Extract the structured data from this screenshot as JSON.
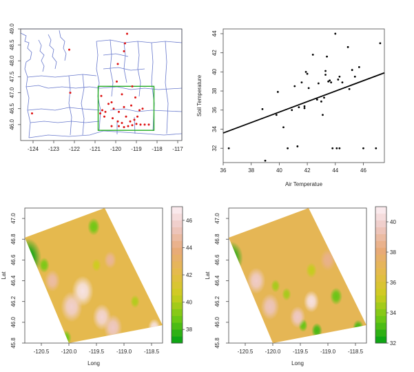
{
  "chart_data": [
    {
      "type": "map",
      "title": "",
      "xlabel": "",
      "ylabel": "",
      "xlim": [
        -124.6,
        -116.8
      ],
      "ylim": [
        45.5,
        49.0
      ],
      "x_ticks": [
        "-124",
        "-123",
        "-122",
        "-121",
        "-120",
        "-119",
        "-118",
        "-117"
      ],
      "y_ticks": [
        "46.0",
        "46.5",
        "47.0",
        "47.5",
        "48.0",
        "48.5",
        "49.0"
      ],
      "box": {
        "color": "#22aa22",
        "lon": [
          -120.85,
          -118.15
        ],
        "lat": [
          45.82,
          47.2
        ]
      },
      "point_color": "#dd1111",
      "points": [
        [
          -119.45,
          48.85
        ],
        [
          -119.55,
          48.55
        ],
        [
          -119.6,
          48.3
        ],
        [
          -122.25,
          48.35
        ],
        [
          -119.9,
          47.9
        ],
        [
          -119.95,
          47.35
        ],
        [
          -119.2,
          47.2
        ],
        [
          -122.2,
          47.0
        ],
        [
          -120.7,
          46.9
        ],
        [
          -120.35,
          46.65
        ],
        [
          -120.2,
          46.7
        ],
        [
          -120.5,
          46.4
        ],
        [
          -120.65,
          46.45
        ],
        [
          -120.75,
          46.35
        ],
        [
          -120.55,
          46.25
        ],
        [
          -120.1,
          46.5
        ],
        [
          -119.85,
          46.4
        ],
        [
          -119.6,
          46.55
        ],
        [
          -119.5,
          46.25
        ],
        [
          -119.25,
          46.6
        ],
        [
          -118.85,
          46.45
        ],
        [
          -118.7,
          46.5
        ],
        [
          -119.05,
          46.85
        ],
        [
          -119.7,
          46.95
        ],
        [
          -118.95,
          46.25
        ],
        [
          -119.1,
          46.15
        ],
        [
          -119.3,
          46.1
        ],
        [
          -119.7,
          46.05
        ],
        [
          -119.85,
          45.95
        ],
        [
          -119.6,
          45.92
        ],
        [
          -119.4,
          45.95
        ],
        [
          -119.2,
          45.98
        ],
        [
          -119.0,
          46.02
        ],
        [
          -118.8,
          46.0
        ],
        [
          -118.6,
          46.0
        ],
        [
          -118.4,
          46.0
        ],
        [
          -120.2,
          45.95
        ],
        [
          -124.05,
          46.35
        ],
        [
          -120.15,
          46.2
        ],
        [
          -119.9,
          46.1
        ]
      ]
    },
    {
      "type": "scatter",
      "title": "",
      "xlabel": "Air Temperatue",
      "ylabel": "Soil Temperature",
      "xlim": [
        36,
        47.5
      ],
      "ylim": [
        30.5,
        44.5
      ],
      "x_ticks": [
        36,
        38,
        40,
        42,
        44,
        46
      ],
      "y_ticks": [
        32,
        34,
        36,
        38,
        40,
        42,
        44
      ],
      "regression_line": {
        "x": [
          36,
          47.5
        ],
        "y": [
          33.6,
          39.9
        ]
      },
      "points": [
        [
          36.4,
          32.0
        ],
        [
          38.8,
          36.1
        ],
        [
          39.0,
          30.7
        ],
        [
          39.8,
          35.5
        ],
        [
          39.9,
          37.9
        ],
        [
          40.3,
          34.2
        ],
        [
          40.6,
          32.0
        ],
        [
          40.9,
          36.0
        ],
        [
          41.1,
          38.5
        ],
        [
          41.3,
          32.2
        ],
        [
          41.4,
          36.3
        ],
        [
          41.6,
          38.9
        ],
        [
          41.8,
          36.4
        ],
        [
          41.9,
          40.0
        ],
        [
          41.8,
          36.2
        ],
        [
          42.0,
          39.8
        ],
        [
          42.1,
          38.3
        ],
        [
          42.4,
          41.8
        ],
        [
          42.7,
          37.1
        ],
        [
          42.8,
          38.8
        ],
        [
          43.0,
          36.9
        ],
        [
          43.1,
          35.5
        ],
        [
          43.2,
          37.3
        ],
        [
          43.3,
          39.7
        ],
        [
          43.3,
          40.1
        ],
        [
          43.4,
          41.6
        ],
        [
          43.5,
          39.0
        ],
        [
          43.6,
          39.1
        ],
        [
          43.7,
          38.9
        ],
        [
          43.8,
          32.0
        ],
        [
          44.0,
          44.0
        ],
        [
          44.1,
          32.0
        ],
        [
          44.2,
          39.2
        ],
        [
          44.3,
          39.5
        ],
        [
          44.3,
          32.0
        ],
        [
          44.5,
          38.9
        ],
        [
          44.9,
          42.6
        ],
        [
          45.0,
          38.2
        ],
        [
          45.2,
          40.2
        ],
        [
          45.4,
          39.5
        ],
        [
          45.7,
          40.5
        ],
        [
          46.0,
          32.0
        ],
        [
          46.9,
          32.0
        ],
        [
          47.2,
          43.0
        ]
      ]
    },
    {
      "type": "heatmap",
      "title": "",
      "xlabel": "Long",
      "ylabel": "Lat",
      "xlim": [
        -120.8,
        -118.3
      ],
      "ylim": [
        45.8,
        47.1
      ],
      "x_ticks": [
        "-120.5",
        "-120.0",
        "-119.5",
        "-119.0",
        "-118.5"
      ],
      "y_ticks": [
        "45.8",
        "46.0",
        "46.2",
        "46.4",
        "46.6",
        "46.8",
        "47.0"
      ],
      "colorbar": {
        "min": 37,
        "max": 47,
        "ticks": [
          38,
          40,
          42,
          44,
          46
        ]
      },
      "background_value": 42.3,
      "hotspots": [
        {
          "lon": -120.75,
          "lat": 46.62,
          "value": 37.2,
          "radius": 0.18
        },
        {
          "lon": -120.45,
          "lat": 46.55,
          "value": 39.0,
          "radius": 0.07
        },
        {
          "lon": -119.55,
          "lat": 46.92,
          "value": 38.8,
          "radius": 0.08
        },
        {
          "lon": -119.5,
          "lat": 46.55,
          "value": 40.5,
          "radius": 0.06
        },
        {
          "lon": -118.8,
          "lat": 46.2,
          "value": 40.0,
          "radius": 0.06
        },
        {
          "lon": -120.05,
          "lat": 45.85,
          "value": 38.8,
          "radius": 0.07
        },
        {
          "lon": -119.75,
          "lat": 46.3,
          "value": 46.5,
          "radius": 0.14
        },
        {
          "lon": -119.95,
          "lat": 46.15,
          "value": 45.8,
          "radius": 0.14
        },
        {
          "lon": -119.4,
          "lat": 46.05,
          "value": 46.0,
          "radius": 0.12
        },
        {
          "lon": -119.2,
          "lat": 45.95,
          "value": 45.5,
          "radius": 0.12
        },
        {
          "lon": -118.45,
          "lat": 45.95,
          "value": 46.5,
          "radius": 0.08
        },
        {
          "lon": -119.25,
          "lat": 46.6,
          "value": 44.5,
          "radius": 0.08
        },
        {
          "lon": -120.3,
          "lat": 46.4,
          "value": 44.8,
          "radius": 0.1
        }
      ]
    },
    {
      "type": "heatmap",
      "title": "",
      "xlabel": "Long",
      "ylabel": "Lat",
      "xlim": [
        -120.8,
        -118.3
      ],
      "ylim": [
        45.8,
        47.1
      ],
      "x_ticks": [
        "-120.5",
        "-120.0",
        "-119.5",
        "-119.0",
        "-118.5"
      ],
      "y_ticks": [
        "45.8",
        "46.0",
        "46.2",
        "46.4",
        "46.6",
        "46.8",
        "47.0"
      ],
      "colorbar": {
        "min": 32,
        "max": 41,
        "ticks": [
          32,
          34,
          36,
          38,
          40
        ]
      },
      "background_value": 37.0,
      "hotspots": [
        {
          "lon": -120.75,
          "lat": 46.62,
          "value": 32.5,
          "radius": 0.15
        },
        {
          "lon": -119.95,
          "lat": 46.35,
          "value": 34.5,
          "radius": 0.06
        },
        {
          "lon": -119.75,
          "lat": 46.27,
          "value": 34.5,
          "radius": 0.06
        },
        {
          "lon": -118.85,
          "lat": 46.25,
          "value": 33.5,
          "radius": 0.08
        },
        {
          "lon": -119.45,
          "lat": 45.97,
          "value": 33.5,
          "radius": 0.06
        },
        {
          "lon": -119.2,
          "lat": 45.92,
          "value": 33.0,
          "radius": 0.07
        },
        {
          "lon": -118.45,
          "lat": 45.95,
          "value": 33.0,
          "radius": 0.07
        },
        {
          "lon": -119.3,
          "lat": 46.5,
          "value": 35.0,
          "radius": 0.07
        },
        {
          "lon": -119.3,
          "lat": 46.2,
          "value": 40.5,
          "radius": 0.1
        },
        {
          "lon": -120.3,
          "lat": 46.4,
          "value": 39.8,
          "radius": 0.12
        },
        {
          "lon": -120.05,
          "lat": 46.15,
          "value": 39.5,
          "radius": 0.12
        },
        {
          "lon": -119.55,
          "lat": 46.05,
          "value": 39.7,
          "radius": 0.1
        },
        {
          "lon": -119.0,
          "lat": 46.6,
          "value": 38.5,
          "radius": 0.1
        }
      ]
    }
  ]
}
